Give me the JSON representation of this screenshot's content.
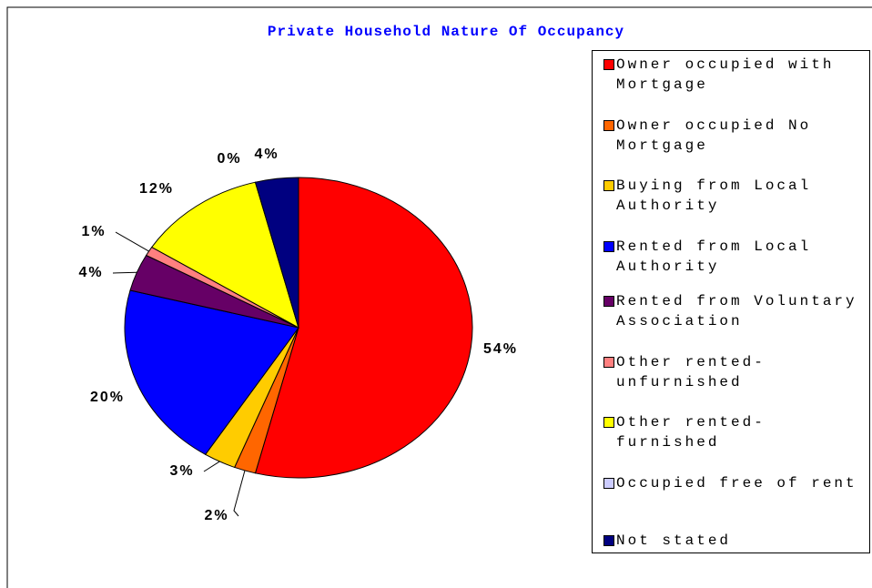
{
  "chart_data": {
    "type": "pie",
    "title": "Private Household Nature Of Occupancy",
    "categories": [
      "Owner occupied with Mortgage",
      "Owner occupied No Mortgage",
      "Buying from Local Authority",
      "Rented from Local Authority",
      "Rented from Voluntary Association",
      "Other rented-unfurnished",
      "Other rented-furnished",
      "Occupied free of rent",
      "Not stated"
    ],
    "values": [
      54,
      2,
      3,
      20,
      4,
      1,
      12,
      0,
      4
    ],
    "value_labels": [
      "54%",
      "2%",
      "3%",
      "20%",
      "4%",
      "1%",
      "12%",
      "0%",
      "4%"
    ],
    "colors": [
      "#ff0000",
      "#ff6600",
      "#ffcc00",
      "#0000ff",
      "#660066",
      "#ff8080",
      "#ffff00",
      "#ccccff",
      "#000080"
    ],
    "legend": "right"
  }
}
